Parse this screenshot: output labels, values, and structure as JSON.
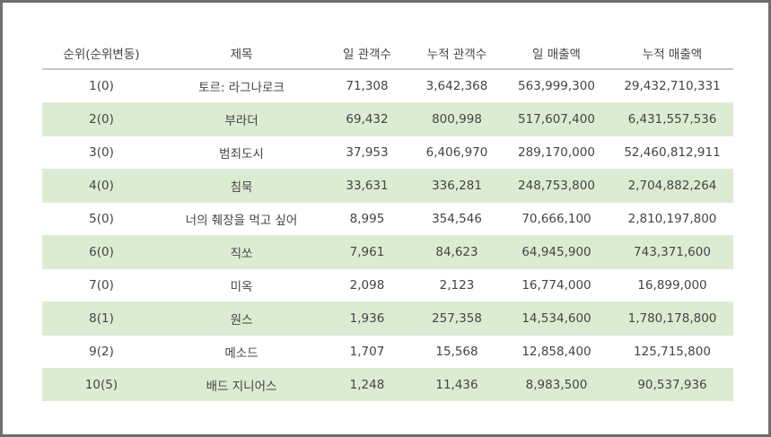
{
  "table": {
    "headers": [
      "순위(순위변동)",
      "제목",
      "일 관객수",
      "누적 관객수",
      "일 매출액",
      "누적 매출액"
    ],
    "rows": [
      {
        "rank": "1(0)",
        "title": "토르: 라그나로크",
        "daily_audience": "71,308",
        "total_audience": "3,642,368",
        "daily_sales": "563,999,300",
        "total_sales": "29,432,710,331"
      },
      {
        "rank": "2(0)",
        "title": "부라더",
        "daily_audience": "69,432",
        "total_audience": "800,998",
        "daily_sales": "517,607,400",
        "total_sales": "6,431,557,536"
      },
      {
        "rank": "3(0)",
        "title": "범죄도시",
        "daily_audience": "37,953",
        "total_audience": "6,406,970",
        "daily_sales": "289,170,000",
        "total_sales": "52,460,812,911"
      },
      {
        "rank": "4(0)",
        "title": "침묵",
        "daily_audience": "33,631",
        "total_audience": "336,281",
        "daily_sales": "248,753,800",
        "total_sales": "2,704,882,264"
      },
      {
        "rank": "5(0)",
        "title": "너의 췌장을 먹고 싶어",
        "daily_audience": "8,995",
        "total_audience": "354,546",
        "daily_sales": "70,666,100",
        "total_sales": "2,810,197,800"
      },
      {
        "rank": "6(0)",
        "title": "직쏘",
        "daily_audience": "7,961",
        "total_audience": "84,623",
        "daily_sales": "64,945,900",
        "total_sales": "743,371,600"
      },
      {
        "rank": "7(0)",
        "title": "미옥",
        "daily_audience": "2,098",
        "total_audience": "2,123",
        "daily_sales": "16,774,000",
        "total_sales": "16,899,000"
      },
      {
        "rank": "8(1)",
        "title": "원스",
        "daily_audience": "1,936",
        "total_audience": "257,358",
        "daily_sales": "14,534,600",
        "total_sales": "1,780,178,800"
      },
      {
        "rank": "9(2)",
        "title": "메소드",
        "daily_audience": "1,707",
        "total_audience": "15,568",
        "daily_sales": "12,858,400",
        "total_sales": "125,715,800"
      },
      {
        "rank": "10(5)",
        "title": "배드 지니어스",
        "daily_audience": "1,248",
        "total_audience": "11,436",
        "daily_sales": "8,983,500",
        "total_sales": "90,537,936"
      }
    ]
  },
  "colors": {
    "border": "#6f6f6f",
    "header_rule": "#c8c8c8",
    "stripe": "#dcecd2",
    "text": "#444444"
  }
}
